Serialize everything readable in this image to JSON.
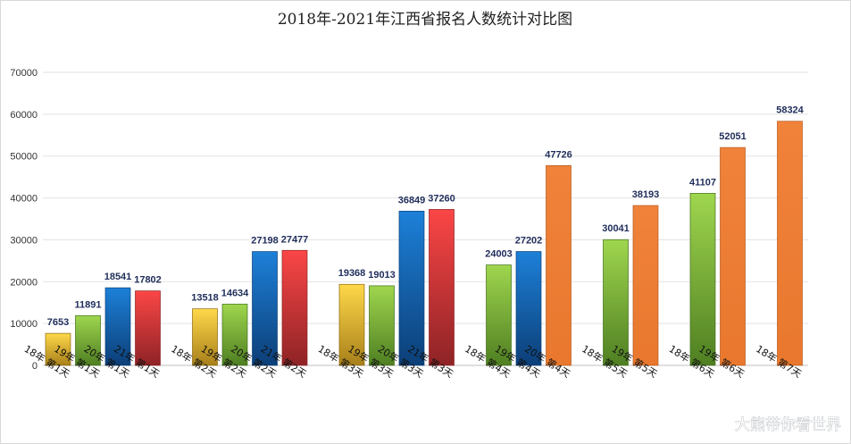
{
  "chart_data": {
    "type": "bar",
    "title": "2018年-2021年江西省报名人数统计对比图",
    "xlabel": "",
    "ylabel": "",
    "ylim": [
      0,
      70000
    ],
    "yticks": [
      0,
      10000,
      20000,
      30000,
      40000,
      50000,
      60000,
      70000
    ],
    "grid": true,
    "legend": "none",
    "series_colors": {
      "18年": "#e6b830",
      "19年": "#8ec63f",
      "20年": "#1a6fc0",
      "21年": "#e23a3a",
      "highlight": "#ee7d32"
    },
    "groups": [
      {
        "name": "第1天",
        "bars": [
          {
            "label": "18年 第1天",
            "series": "18年",
            "value": 7653
          },
          {
            "label": "19年 第1天",
            "series": "19年",
            "value": 11891
          },
          {
            "label": "20年 第1天",
            "series": "20年",
            "value": 18541
          },
          {
            "label": "21年 第1天",
            "series": "21年",
            "value": 17802
          }
        ]
      },
      {
        "name": "第2天",
        "bars": [
          {
            "label": "18年 第2天",
            "series": "18年",
            "value": 13518
          },
          {
            "label": "19年 第2天",
            "series": "19年",
            "value": 14634
          },
          {
            "label": "20年 第2天",
            "series": "20年",
            "value": 27198
          },
          {
            "label": "21年 第2天",
            "series": "21年",
            "value": 27477
          }
        ]
      },
      {
        "name": "第3天",
        "bars": [
          {
            "label": "18年 第3天",
            "series": "18年",
            "value": 19368
          },
          {
            "label": "19年 第3天",
            "series": "19年",
            "value": 19013
          },
          {
            "label": "20年 第3天",
            "series": "20年",
            "value": 36849
          },
          {
            "label": "21年 第3天",
            "series": "21年",
            "value": 37260
          }
        ]
      },
      {
        "name": "第4天",
        "bars": [
          {
            "label": "18年 第4天",
            "series": "19年",
            "value": 24003
          },
          {
            "label": "19年 第4天",
            "series": "20年",
            "value": 27202
          },
          {
            "label": "20年 第4天",
            "series": "highlight",
            "value": 47726
          }
        ]
      },
      {
        "name": "第5天",
        "bars": [
          {
            "label": "18年 第5天",
            "series": "19年",
            "value": 30041
          },
          {
            "label": "19年 第5天",
            "series": "highlight",
            "value": 38193
          }
        ]
      },
      {
        "name": "第6天",
        "bars": [
          {
            "label": "18年 第6天",
            "series": "19年",
            "value": 41107
          },
          {
            "label": "19年 第6天",
            "series": "highlight",
            "value": 52051
          }
        ]
      },
      {
        "name": "第7天",
        "bars": [
          {
            "label": "18年 第7天",
            "series": "highlight",
            "value": 58324
          }
        ]
      }
    ]
  },
  "watermark": "大熊带你看世界"
}
